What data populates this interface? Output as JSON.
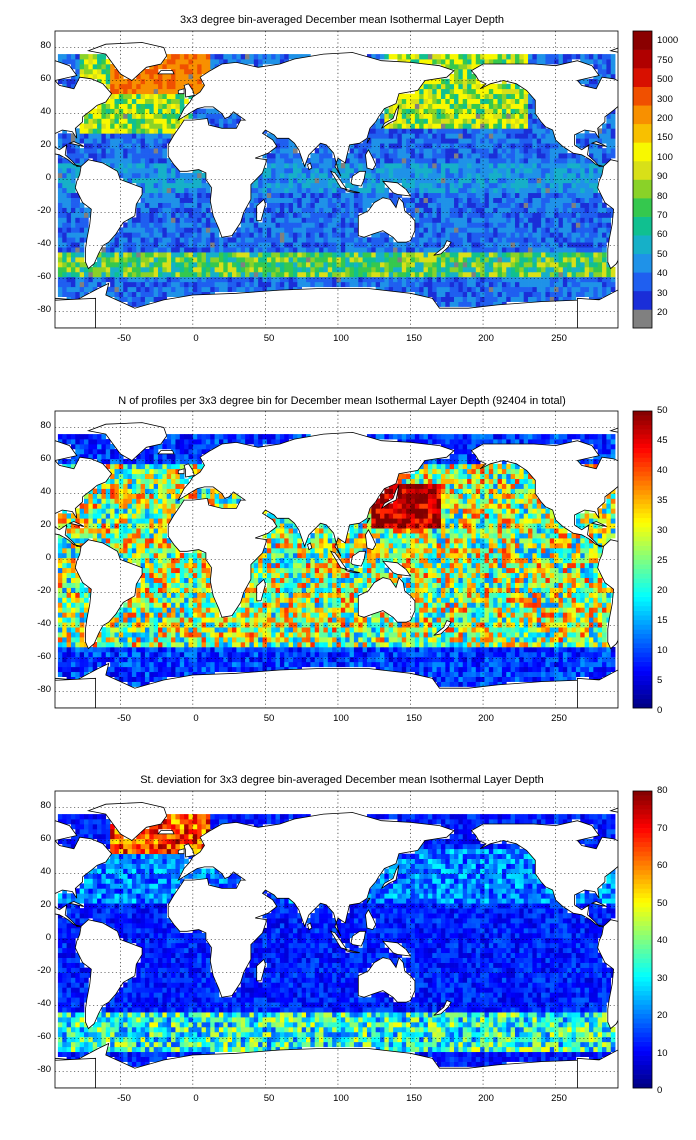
{
  "chart_data": [
    {
      "type": "heatmap",
      "title": "3x3 degree bin-averaged December mean Isothermal Layer Depth",
      "x_ticks": [
        "-50",
        "0",
        "50",
        "100",
        "150",
        "200",
        "250"
      ],
      "y_ticks": [
        "80",
        "60",
        "40",
        "20",
        "0",
        "-20",
        "-40",
        "-60",
        "-80"
      ],
      "xlim": [
        -95,
        293
      ],
      "ylim": [
        -90,
        90
      ],
      "grid": true,
      "colorbar_levels": [
        "20",
        "30",
        "40",
        "50",
        "60",
        "70",
        "80",
        "90",
        "100",
        "150",
        "200",
        "300",
        "500",
        "750",
        "1000"
      ],
      "colorbar_colors": [
        "#808080",
        "#1a2ed8",
        "#1f5ff0",
        "#1f92e8",
        "#16b0c8",
        "#10c090",
        "#35c84e",
        "#8ad228",
        "#d8e018",
        "#f8f800",
        "#f8c000",
        "#f89000",
        "#f05000",
        "#d81000",
        "#b00000",
        "#8a0000"
      ],
      "field": "isothermal_layer_depth"
    },
    {
      "type": "heatmap",
      "title": "N of profiles per 3x3 degree bin for December mean Isothermal Layer Depth  (92404 in total)",
      "x_ticks": [
        "-50",
        "0",
        "50",
        "100",
        "150",
        "200",
        "250"
      ],
      "y_ticks": [
        "80",
        "60",
        "40",
        "20",
        "0",
        "-20",
        "-40",
        "-60",
        "-80"
      ],
      "xlim": [
        -95,
        293
      ],
      "ylim": [
        -90,
        90
      ],
      "grid": true,
      "colorbar_ticks": [
        "0",
        "5",
        "10",
        "15",
        "20",
        "25",
        "30",
        "35",
        "40",
        "45",
        "50"
      ],
      "colorbar_range": [
        0,
        50
      ],
      "colormap": "jet",
      "field": "profile_count"
    },
    {
      "type": "heatmap",
      "title": "St. deviation for 3x3 degree bin-averaged December mean Isothermal Layer Depth",
      "x_ticks": [
        "-50",
        "0",
        "50",
        "100",
        "150",
        "200",
        "250"
      ],
      "y_ticks": [
        "80",
        "60",
        "40",
        "20",
        "0",
        "-20",
        "-40",
        "-60",
        "-80"
      ],
      "xlim": [
        -95,
        293
      ],
      "ylim": [
        -90,
        90
      ],
      "grid": true,
      "colorbar_ticks": [
        "0",
        "10",
        "20",
        "30",
        "40",
        "50",
        "60",
        "70",
        "80"
      ],
      "colorbar_range": [
        0,
        80
      ],
      "colormap": "jet",
      "field": "standard_deviation"
    }
  ]
}
